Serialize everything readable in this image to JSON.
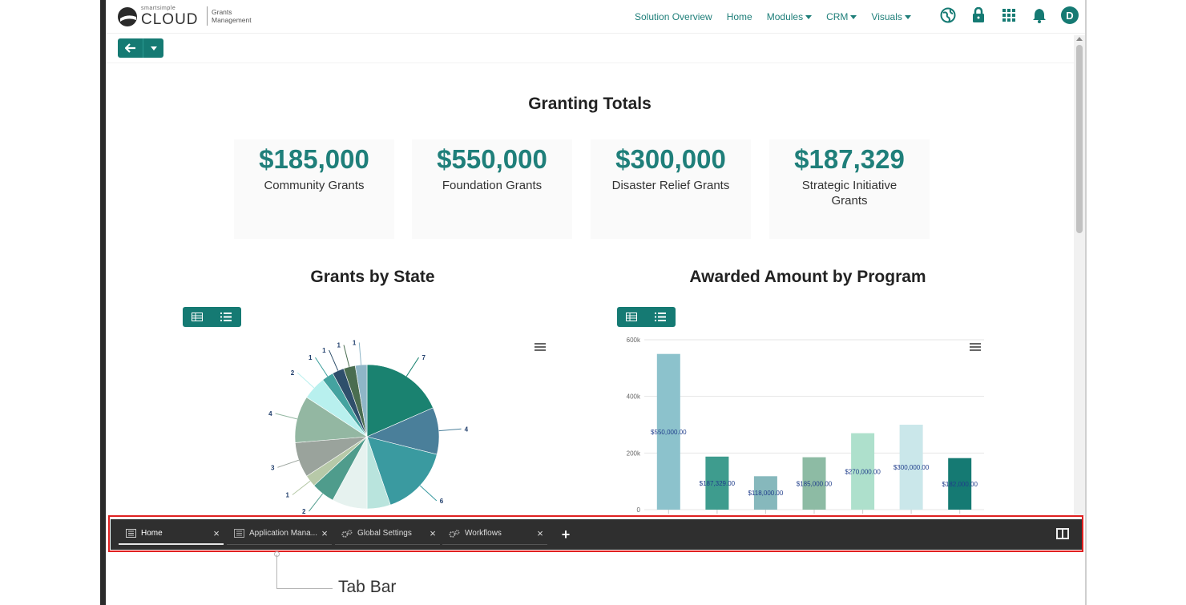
{
  "header": {
    "logo_small": "smartsimple",
    "logo_main": "CLOUD",
    "logo_sub": "Grants Management",
    "nav": [
      {
        "label": "Solution Overview",
        "dropdown": false
      },
      {
        "label": "Home",
        "dropdown": false
      },
      {
        "label": "Modules",
        "dropdown": true
      },
      {
        "label": "CRM",
        "dropdown": true
      },
      {
        "label": "Visuals",
        "dropdown": true
      }
    ],
    "icons": [
      "globe-icon",
      "lock-icon",
      "apps-grid-icon",
      "bell-icon"
    ],
    "avatar_initial": "D"
  },
  "totals": {
    "title": "Granting Totals",
    "items": [
      {
        "value": "$185,000",
        "label": "Community Grants"
      },
      {
        "value": "$550,000",
        "label": "Foundation Grants"
      },
      {
        "value": "$300,000",
        "label": "Disaster Relief Grants"
      },
      {
        "value": "$187,329",
        "label": "Strategic Initiative Grants"
      }
    ]
  },
  "colors": {
    "accent": "#157a73",
    "text_accent": "#1f7f7a",
    "tabbar": "#2f2f2f",
    "highlight": "#e02020"
  },
  "chart_data": [
    {
      "type": "pie",
      "title": "Grants by State",
      "values": [
        7,
        4,
        6,
        2,
        3,
        2,
        1,
        3,
        4,
        2,
        1,
        1,
        1,
        1
      ],
      "labels": [
        "7",
        "4",
        "6",
        "",
        "",
        "2",
        "1",
        "3",
        "4",
        "2",
        "1",
        "1",
        "1",
        "1"
      ],
      "colors": [
        "#1a8270",
        "#4a7f9a",
        "#3a9aa0",
        "#b9e4dd",
        "#e6f2ef",
        "#4f9c8c",
        "#b7c9a8",
        "#9aa39c",
        "#93b7a2",
        "#b8f0ee",
        "#44a3a0",
        "#2f4f6b",
        "#4a6d50",
        "#8fb6c7"
      ]
    },
    {
      "type": "bar",
      "title": "Awarded Amount by Program",
      "categories": [
        "",
        "",
        "",
        "",
        "",
        "",
        ""
      ],
      "values": [
        550000,
        187329,
        118000,
        185000,
        270000,
        300000,
        182000
      ],
      "data_labels": [
        "$550,000.00",
        "$187,329.00",
        "$118,000.00",
        "$185,000.00",
        "$270,000.00",
        "$300,000.00",
        "$182,000.00"
      ],
      "colors": [
        "#8cc2cc",
        "#3e9c8e",
        "#86b8bc",
        "#8dbba4",
        "#aee0cc",
        "#cae7ea",
        "#157a73"
      ],
      "ylim": [
        0,
        600000
      ],
      "yticks": [
        "0",
        "200k",
        "400k",
        "600k"
      ]
    }
  ],
  "tabs": [
    {
      "label": "Home",
      "icon": "page-icon",
      "active": true
    },
    {
      "label": "Application Mana...",
      "icon": "page-icon",
      "active": false
    },
    {
      "label": "Global Settings",
      "icon": "gears-icon",
      "active": false
    },
    {
      "label": "Workflows",
      "icon": "gears-icon",
      "active": false
    }
  ],
  "callout": "Tab Bar"
}
